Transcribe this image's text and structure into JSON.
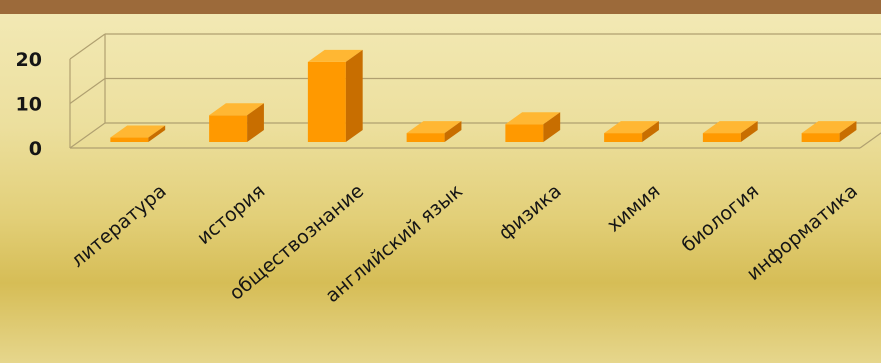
{
  "chart_data": {
    "type": "bar",
    "categories": [
      "литература",
      "история",
      "обществознание",
      "английский язык",
      "физика",
      "химия",
      "биология",
      "информатика"
    ],
    "values": [
      1,
      6,
      18,
      2,
      4,
      2,
      2,
      2
    ],
    "yticks": [
      0,
      10,
      20
    ],
    "ylim": [
      0,
      20
    ],
    "grid": true,
    "three_d": true,
    "title": "",
    "xlabel": "",
    "ylabel": "",
    "colors": {
      "bar_front": "#ff9900",
      "bar_top": "#ffb733",
      "bar_side": "#c86e00",
      "grid": "#b0a070",
      "header_band": "#9c6a3a"
    }
  }
}
